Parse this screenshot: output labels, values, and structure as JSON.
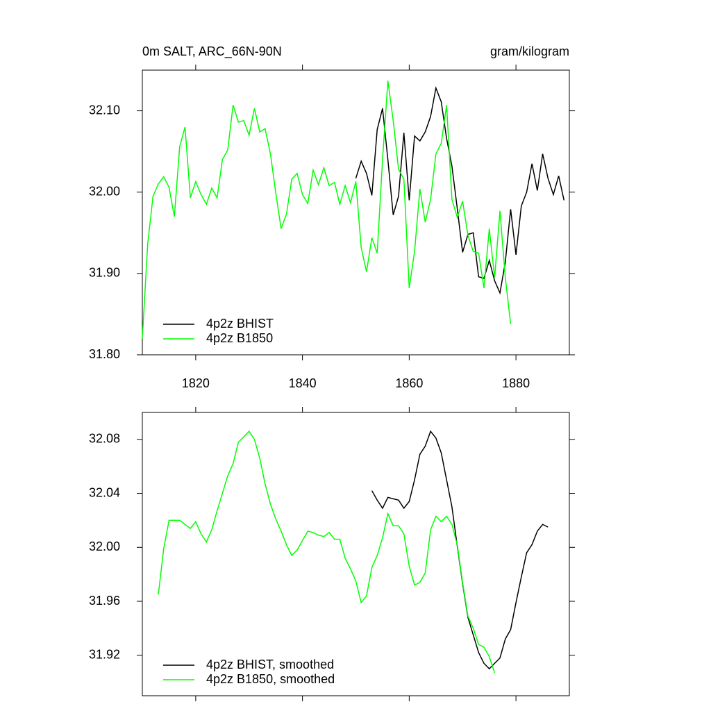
{
  "chart_data": [
    {
      "type": "line",
      "title": "0m SALT, ARC_66N-90N",
      "units": "gram/kilogram",
      "xlim": [
        1810,
        1890
      ],
      "xticks": [
        1820,
        1840,
        1860,
        1880
      ],
      "ylim": [
        31.8,
        32.15
      ],
      "yticks": [
        {
          "value": 32.1,
          "label": "32.10"
        },
        {
          "value": 32.0,
          "label": "32.00"
        },
        {
          "value": 31.9,
          "label": "31.90"
        },
        {
          "value": 31.8,
          "label": "31.80"
        }
      ],
      "legend": "lower left",
      "series": [
        {
          "name": "4p2z BHIST",
          "color": "#000000",
          "x": [
            1850,
            1851,
            1852,
            1853,
            1854,
            1855,
            1856,
            1857,
            1858,
            1859,
            1860,
            1861,
            1862,
            1863,
            1864,
            1865,
            1866,
            1867,
            1868,
            1869,
            1870,
            1871,
            1872,
            1873,
            1874,
            1875,
            1876,
            1877,
            1878,
            1879,
            1880,
            1881,
            1882,
            1883,
            1884,
            1885,
            1886,
            1887,
            1888,
            1889
          ],
          "values": [
            32.017,
            32.038,
            32.023,
            31.996,
            32.077,
            32.103,
            32.04,
            31.972,
            31.995,
            32.073,
            31.99,
            32.069,
            32.063,
            32.074,
            32.093,
            32.128,
            32.111,
            32.066,
            32.032,
            31.98,
            31.926,
            31.948,
            31.95,
            31.896,
            31.894,
            31.916,
            31.891,
            31.876,
            31.914,
            31.979,
            31.923,
            31.983,
            32.0,
            32.035,
            32.002,
            32.047,
            32.017,
            31.997,
            32.02,
            31.99
          ]
        },
        {
          "name": "4p2z B1850",
          "color": "#00ff00",
          "x": [
            1810,
            1811,
            1812,
            1813,
            1814,
            1815,
            1816,
            1817,
            1818,
            1819,
            1820,
            1821,
            1822,
            1823,
            1824,
            1825,
            1826,
            1827,
            1828,
            1829,
            1830,
            1831,
            1832,
            1833,
            1834,
            1835,
            1836,
            1837,
            1838,
            1839,
            1840,
            1841,
            1842,
            1843,
            1844,
            1845,
            1846,
            1847,
            1848,
            1849,
            1850,
            1851,
            1852,
            1853,
            1854,
            1855,
            1856,
            1857,
            1858,
            1859,
            1860,
            1861,
            1862,
            1863,
            1864,
            1865,
            1866,
            1867,
            1868,
            1869,
            1870,
            1871,
            1872,
            1873,
            1874,
            1875,
            1876,
            1877,
            1878,
            1879
          ],
          "values": [
            31.82,
            31.936,
            31.995,
            32.01,
            32.019,
            32.006,
            31.97,
            32.056,
            32.08,
            31.993,
            32.013,
            31.997,
            31.985,
            32.005,
            31.993,
            32.04,
            32.052,
            32.107,
            32.086,
            32.088,
            32.07,
            32.103,
            32.074,
            32.078,
            32.047,
            31.999,
            31.955,
            31.973,
            32.016,
            32.023,
            31.997,
            31.986,
            32.027,
            32.009,
            32.03,
            32.008,
            32.012,
            31.985,
            32.008,
            31.987,
            32.013,
            31.932,
            31.902,
            31.944,
            31.925,
            32.04,
            32.137,
            32.088,
            32.028,
            32.016,
            31.882,
            31.927,
            32.004,
            31.963,
            31.991,
            32.047,
            32.06,
            32.107,
            31.991,
            31.969,
            31.989,
            31.947,
            31.927,
            31.925,
            31.882,
            31.955,
            31.895,
            31.977,
            31.895,
            31.838
          ]
        }
      ]
    },
    {
      "type": "line",
      "xlim": [
        1810,
        1890
      ],
      "xticks": [
        1820,
        1840,
        1860,
        1880
      ],
      "ylim": [
        31.89,
        32.1
      ],
      "yticks": [
        32.08,
        32.04,
        {
          "value": 32.0,
          "label": "32.00"
        },
        31.96,
        31.92
      ],
      "legend": "lower left",
      "series": [
        {
          "name": "4p2z BHIST, smoothed",
          "color": "#000000",
          "x": [
            1853,
            1854,
            1855,
            1856,
            1857,
            1858,
            1859,
            1860,
            1861,
            1862,
            1863,
            1864,
            1865,
            1866,
            1867,
            1868,
            1869,
            1870,
            1871,
            1872,
            1873,
            1874,
            1875,
            1876,
            1877,
            1878,
            1879,
            1880,
            1881,
            1882,
            1883,
            1884,
            1885,
            1886
          ],
          "values": [
            32.042,
            32.035,
            32.029,
            32.037,
            32.036,
            32.035,
            32.029,
            32.034,
            32.05,
            32.069,
            32.075,
            32.086,
            32.081,
            32.07,
            32.05,
            32.03,
            32.001,
            31.973,
            31.948,
            31.935,
            31.922,
            31.914,
            31.91,
            31.914,
            31.918,
            31.932,
            31.939,
            31.959,
            31.978,
            31.996,
            32.002,
            32.012,
            32.017,
            32.015
          ]
        },
        {
          "name": "4p2z B1850, smoothed",
          "color": "#00ff00",
          "x": [
            1813,
            1814,
            1815,
            1816,
            1817,
            1818,
            1819,
            1820,
            1821,
            1822,
            1823,
            1824,
            1825,
            1826,
            1827,
            1828,
            1829,
            1830,
            1831,
            1832,
            1833,
            1834,
            1835,
            1836,
            1837,
            1838,
            1839,
            1840,
            1841,
            1842,
            1843,
            1844,
            1845,
            1846,
            1847,
            1848,
            1849,
            1850,
            1851,
            1852,
            1853,
            1854,
            1855,
            1856,
            1857,
            1858,
            1859,
            1860,
            1861,
            1862,
            1863,
            1864,
            1865,
            1866,
            1867,
            1868,
            1869,
            1870,
            1871,
            1872,
            1873,
            1874,
            1875,
            1876
          ],
          "values": [
            31.965,
            31.999,
            32.02,
            32.02,
            32.02,
            32.017,
            32.014,
            32.019,
            32.01,
            32.004,
            32.013,
            32.027,
            32.04,
            32.053,
            32.062,
            32.078,
            32.082,
            32.086,
            32.08,
            32.066,
            32.047,
            32.032,
            32.021,
            32.012,
            32.002,
            31.994,
            31.998,
            32.005,
            32.012,
            32.011,
            32.009,
            32.008,
            32.011,
            32.006,
            32.006,
            31.992,
            31.984,
            31.975,
            31.959,
            31.964,
            31.985,
            31.994,
            32.007,
            32.025,
            32.016,
            32.016,
            32.01,
            31.986,
            31.972,
            31.974,
            31.981,
            32.013,
            32.023,
            32.019,
            32.023,
            32.017,
            32.002,
            31.974,
            31.949,
            31.94,
            31.928,
            31.926,
            31.919,
            31.907
          ]
        }
      ]
    }
  ]
}
